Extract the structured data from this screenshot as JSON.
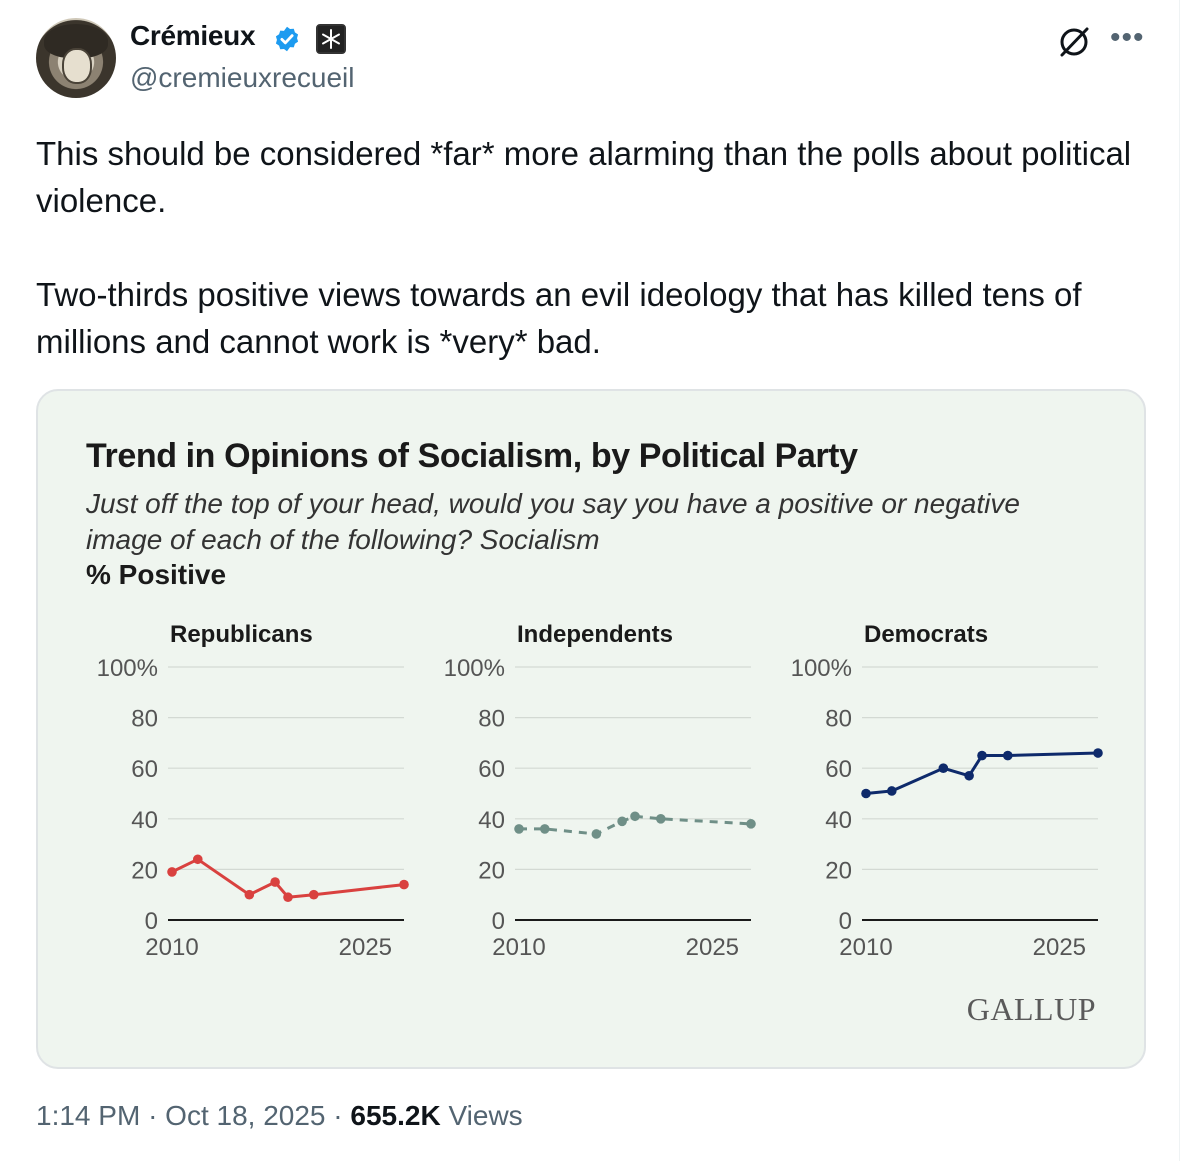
{
  "author": {
    "name": "Crémieux",
    "handle": "@cremieuxrecueil"
  },
  "icons": {
    "verified": "verified-badge-icon",
    "affiliation": "affiliation-badge-icon",
    "grok": "grok-icon",
    "more": "more-icon"
  },
  "tweet": {
    "paragraph1": "This should be considered *far* more alarming than the polls about political violence.",
    "paragraph2": "Two-thirds positive views towards an evil ideology that has killed tens of millions and cannot work is *very* bad.",
    "time": "1:14 PM",
    "date": "Oct 18, 2025",
    "separator": "·",
    "views_count": "655.2K",
    "views_label": "Views"
  },
  "card": {
    "title": "Trend in Opinions of Socialism, by Political Party",
    "subtitle": "Just off the top of your head, would you say you have a positive or negative image of each of the following? Socialism",
    "unit_label": "% Positive",
    "source": "GALLUP"
  },
  "colors": {
    "republicans": "#d9413f",
    "independents": "#6f8f87",
    "democrats": "#0e2a6b",
    "card_bg": "#eff5ef",
    "verified": "#1d9bf0"
  },
  "chart_data": [
    {
      "type": "line",
      "title": "Republicans",
      "x_ticks": [
        "2010",
        "2025"
      ],
      "y_ticks": [
        "100%",
        "80",
        "60",
        "40",
        "20",
        "0"
      ],
      "ylim": [
        0,
        100
      ],
      "xlim": [
        2010,
        2028
      ],
      "style": "solid",
      "color": "#d9413f",
      "x": [
        2010,
        2012,
        2016,
        2018,
        2019,
        2021,
        2028
      ],
      "y": [
        19,
        24,
        10,
        15,
        9,
        10,
        14
      ]
    },
    {
      "type": "line",
      "title": "Independents",
      "x_ticks": [
        "2010",
        "2025"
      ],
      "y_ticks": [
        "100%",
        "80",
        "60",
        "40",
        "20",
        "0"
      ],
      "ylim": [
        0,
        100
      ],
      "xlim": [
        2010,
        2028
      ],
      "style": "dashed",
      "color": "#6f8f87",
      "x": [
        2010,
        2012,
        2016,
        2018,
        2019,
        2021,
        2028
      ],
      "y": [
        36,
        36,
        34,
        39,
        41,
        40,
        38
      ]
    },
    {
      "type": "line",
      "title": "Democrats",
      "x_ticks": [
        "2010",
        "2025"
      ],
      "y_ticks": [
        "100%",
        "80",
        "60",
        "40",
        "20",
        "0"
      ],
      "ylim": [
        0,
        100
      ],
      "xlim": [
        2010,
        2028
      ],
      "style": "solid",
      "color": "#0e2a6b",
      "x": [
        2010,
        2012,
        2016,
        2018,
        2019,
        2021,
        2028
      ],
      "y": [
        50,
        51,
        60,
        57,
        65,
        65,
        66
      ]
    }
  ]
}
